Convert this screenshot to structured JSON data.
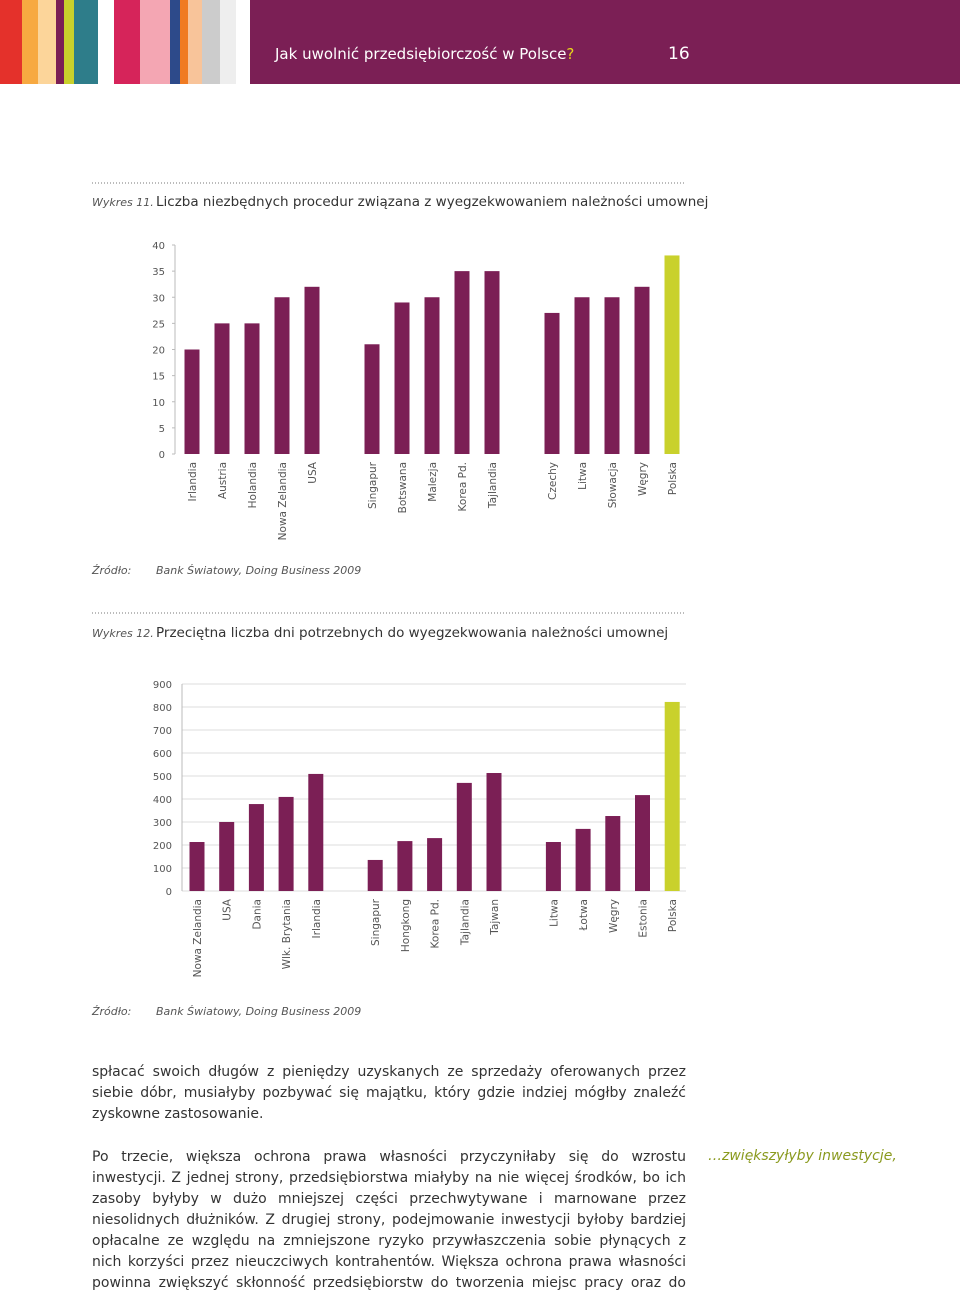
{
  "header": {
    "title": "Jak uwolnić przedsiębiorczość w Polsce",
    "title_mark": "?",
    "page": "16"
  },
  "chart_data": [
    {
      "type": "bar",
      "label": "Wykres 11.",
      "title": "Liczba niezbędnych procedur związana z wyegzekwowaniem należności umownej",
      "categories": [
        "Irlandia",
        "Austria",
        "Holandia",
        "Nowa Zelandia",
        "USA",
        null,
        "Singapur",
        "Botswana",
        "Malezja",
        "Korea Pd.",
        "Tajlandia",
        null,
        "Czechy",
        "Litwa",
        "Słowacja",
        "Węgry",
        "Polska"
      ],
      "values": [
        20,
        25,
        25,
        30,
        32,
        null,
        21,
        29,
        30,
        35,
        35,
        null,
        27,
        30,
        30,
        32,
        38
      ],
      "colors": [
        "#7b1f55",
        "#7b1f55",
        "#7b1f55",
        "#7b1f55",
        "#7b1f55",
        null,
        "#7b1f55",
        "#7b1f55",
        "#7b1f55",
        "#7b1f55",
        "#7b1f55",
        null,
        "#7b1f55",
        "#7b1f55",
        "#7b1f55",
        "#7b1f55",
        "#c9d12c"
      ],
      "ylim": [
        0,
        40
      ],
      "yticks": [
        0,
        5,
        10,
        15,
        20,
        25,
        30,
        35,
        40
      ],
      "grid": false,
      "source_label": "Źródło:",
      "source": "Bank Światowy, Doing Business 2009"
    },
    {
      "type": "bar",
      "label": "Wykres 12.",
      "title": "Przeciętna liczba dni potrzebnych do wyegzekwowania należności umownej",
      "categories": [
        "Nowa Zelandia",
        "USA",
        "Dania",
        "Wlk. Brytania",
        "Irlandia",
        null,
        "Singapur",
        "Hongkong",
        "Korea Pd.",
        "Tajlandia",
        "Tajwan",
        null,
        "Litwa",
        "Łotwa",
        "Węgry",
        "Estonia",
        "Polska"
      ],
      "values": [
        213,
        300,
        378,
        409,
        509,
        null,
        135,
        217,
        230,
        470,
        513,
        null,
        213,
        270,
        326,
        417,
        822
      ],
      "colors": [
        "#7b1f55",
        "#7b1f55",
        "#7b1f55",
        "#7b1f55",
        "#7b1f55",
        null,
        "#7b1f55",
        "#7b1f55",
        "#7b1f55",
        "#7b1f55",
        "#7b1f55",
        null,
        "#7b1f55",
        "#7b1f55",
        "#7b1f55",
        "#7b1f55",
        "#c9d12c"
      ],
      "ylim": [
        0,
        900
      ],
      "yticks": [
        0,
        100,
        200,
        300,
        400,
        500,
        600,
        700,
        800,
        900
      ],
      "grid": true,
      "source_label": "Źródło:",
      "source": "Bank Światowy, Doing Business 2009"
    }
  ],
  "text": {
    "paragraphs": [
      "spłacać swoich długów z pieniędzy uzyskanych ze sprzedaży oferowanych przez siebie dóbr, musiałyby pozbywać się majątku, który gdzie indziej mógłby znaleźć zyskowne zastosowanie.",
      "Po trzecie, większa ochrona prawa własności przyczyniłaby się do wzrostu inwestycji. Z jednej strony, przedsiębiorstwa miałyby na nie więcej środków, bo ich zasoby byłyby w dużo mniejszej części przechwytywane i marnowane przez niesolidnych dłużników. Z drugiej strony, podejmowanie inwestycji byłoby bardziej opłacalne ze względu na zmniejszone ryzyko przywłaszczenia sobie płynących z nich korzyści przez nieuczciwych kontrahentów. Większa ochrona prawa własności powinna zwiększyć skłonność przedsiębiorstw do tworzenia miejsc pracy oraz do innowacji."
    ],
    "side_note": "…zwiększyłyby inwestycje,"
  }
}
